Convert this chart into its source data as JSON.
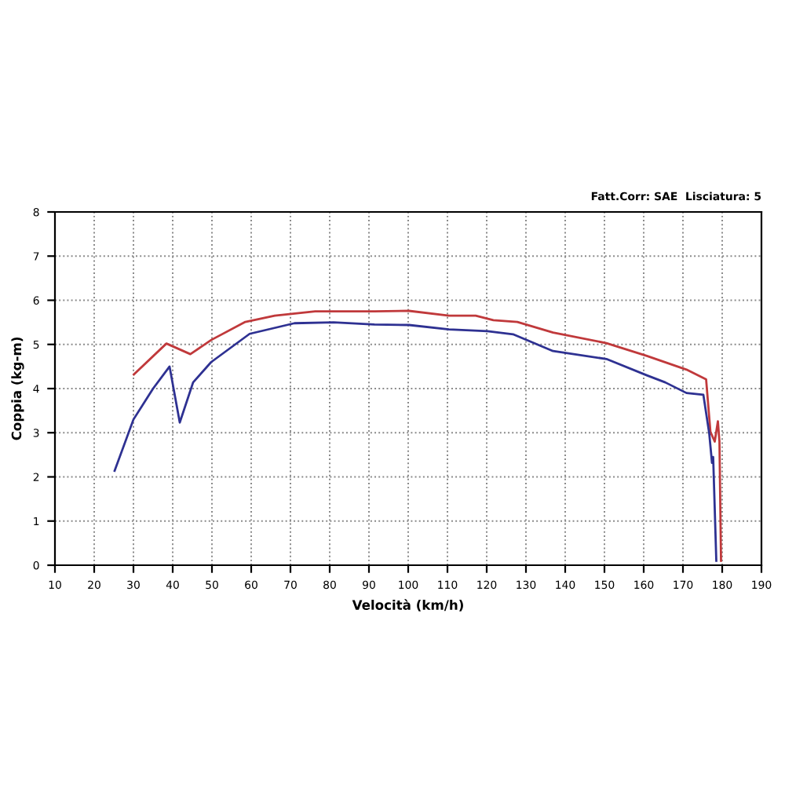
{
  "chart_data": {
    "type": "line",
    "xlabel": "Velocità (km/h)",
    "ylabel": "Coppia (kg-m)",
    "annotations": [
      "Fatt.Corr: SAE  Lisciatura: 5"
    ],
    "xlim": [
      10,
      190
    ],
    "xticks": [
      10,
      20,
      30,
      40,
      50,
      60,
      70,
      80,
      90,
      100,
      110,
      120,
      130,
      140,
      150,
      160,
      170,
      180,
      190
    ],
    "ylim": [
      0,
      8
    ],
    "yticks": [
      0,
      1,
      2,
      3,
      4,
      5,
      6,
      7,
      8
    ],
    "grid": true,
    "line_style": "solid",
    "marker": "none",
    "series": [
      {
        "color": "#c0393b",
        "x": [
          30.1,
          38.4,
          44.5,
          49.8,
          58.5,
          66,
          76.3,
          91.4,
          100.2,
          110.4,
          117.2,
          121.7,
          127.8,
          136.9,
          150.5,
          160.8,
          170.9,
          175.9,
          177,
          178.1,
          178.9,
          179.3,
          179.7
        ],
        "values": [
          4.32,
          5.02,
          4.78,
          5.1,
          5.51,
          5.65,
          5.75,
          5.75,
          5.76,
          5.65,
          5.65,
          5.55,
          5.51,
          5.27,
          5.03,
          4.74,
          4.43,
          4.21,
          3.02,
          2.8,
          3.26,
          2.8,
          0.1
        ]
      },
      {
        "color": "#2e3192",
        "x": [
          25.2,
          30,
          35,
          39.2,
          41.8,
          45.2,
          49.8,
          59.6,
          71,
          81,
          91.4,
          100.2,
          110.4,
          120.2,
          126.7,
          130.5,
          136.9,
          150.5,
          160.8,
          165.5,
          170.9,
          175.2,
          176.7,
          177.4,
          177.7,
          178.5
        ],
        "values": [
          2.14,
          3.3,
          4.0,
          4.5,
          3.23,
          4.14,
          4.6,
          5.24,
          5.48,
          5.5,
          5.45,
          5.44,
          5.34,
          5.3,
          5.23,
          5.09,
          4.85,
          4.67,
          4.3,
          4.14,
          3.9,
          3.86,
          2.98,
          2.32,
          2.45,
          0.1
        ]
      }
    ]
  }
}
